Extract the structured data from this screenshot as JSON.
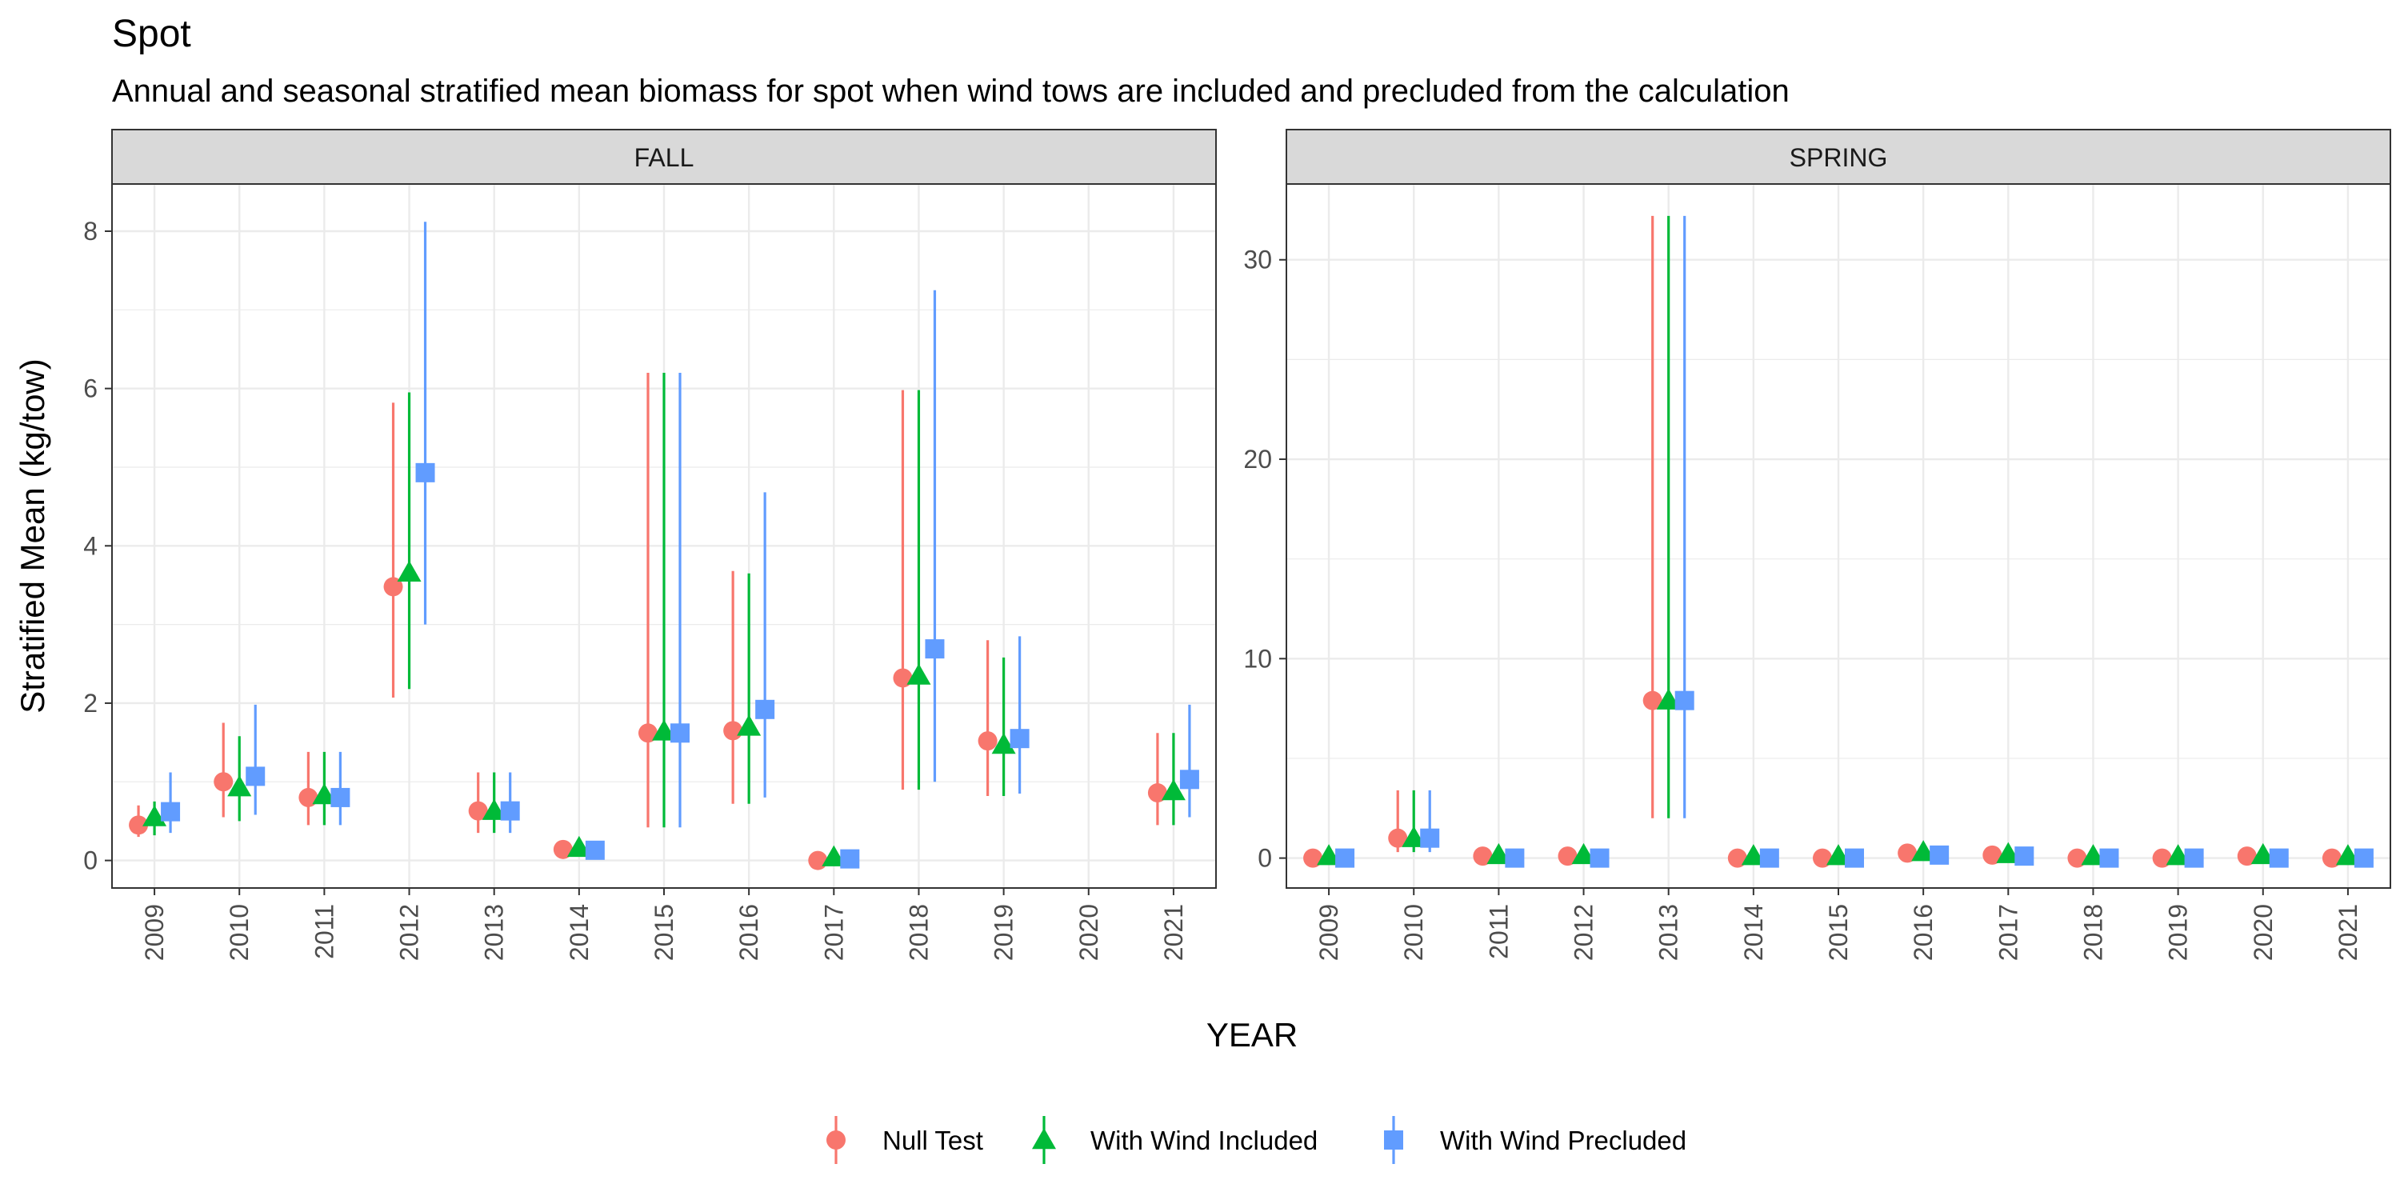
{
  "title": "Spot",
  "subtitle": "Annual and seasonal stratified mean biomass for spot when wind tows are included and precluded from the calculation",
  "colors": {
    "null_test": "#F8766D",
    "with_wind_included": "#00BA38",
    "with_wind_precluded": "#619CFF",
    "strip_bg": "#D9D9D9",
    "grid": "#EBEBEB",
    "panel_border": "#333333"
  },
  "chart_data": {
    "type": "scatter",
    "subtype": "pointrange-faceted",
    "xlabel": "YEAR",
    "ylabel": "Stratified Mean (kg/tow)",
    "legend_position": "bottom",
    "grid": true,
    "legend": [
      {
        "key": "null_test",
        "label": "Null Test",
        "shape": "circle"
      },
      {
        "key": "with_wind_included",
        "label": "With Wind Included",
        "shape": "triangle"
      },
      {
        "key": "with_wind_precluded",
        "label": "With Wind Precluded",
        "shape": "square"
      }
    ],
    "facets": [
      {
        "label": "FALL",
        "ylim": [
          -0.35,
          8.6
        ],
        "yticks": [
          0,
          2,
          4,
          6,
          8
        ],
        "years": [
          "2009",
          "2010",
          "2011",
          "2012",
          "2013",
          "2014",
          "2015",
          "2016",
          "2017",
          "2018",
          "2019",
          "2020",
          "2021"
        ],
        "series": [
          {
            "key": "null_test",
            "points": [
              {
                "year": "2009",
                "mean": 0.45,
                "low": 0.3,
                "high": 0.7
              },
              {
                "year": "2010",
                "mean": 1.0,
                "low": 0.55,
                "high": 1.75
              },
              {
                "year": "2011",
                "mean": 0.8,
                "low": 0.45,
                "high": 1.38
              },
              {
                "year": "2012",
                "mean": 3.48,
                "low": 2.07,
                "high": 5.82
              },
              {
                "year": "2013",
                "mean": 0.63,
                "low": 0.35,
                "high": 1.12
              },
              {
                "year": "2014",
                "mean": 0.14,
                "low": 0.05,
                "high": 0.25
              },
              {
                "year": "2015",
                "mean": 1.62,
                "low": 0.42,
                "high": 6.2
              },
              {
                "year": "2016",
                "mean": 1.65,
                "low": 0.72,
                "high": 3.68
              },
              {
                "year": "2017",
                "mean": 0.0,
                "low": 0.0,
                "high": 0.0
              },
              {
                "year": "2018",
                "mean": 2.32,
                "low": 0.9,
                "high": 5.98
              },
              {
                "year": "2019",
                "mean": 1.52,
                "low": 0.82,
                "high": 2.8
              },
              {
                "year": "2021",
                "mean": 0.86,
                "low": 0.45,
                "high": 1.62
              }
            ]
          },
          {
            "key": "with_wind_included",
            "points": [
              {
                "year": "2009",
                "mean": 0.55,
                "low": 0.32,
                "high": 0.75
              },
              {
                "year": "2010",
                "mean": 0.93,
                "low": 0.5,
                "high": 1.58
              },
              {
                "year": "2011",
                "mean": 0.83,
                "low": 0.45,
                "high": 1.38
              },
              {
                "year": "2012",
                "mean": 3.66,
                "low": 2.18,
                "high": 5.95
              },
              {
                "year": "2013",
                "mean": 0.63,
                "low": 0.35,
                "high": 1.12
              },
              {
                "year": "2014",
                "mean": 0.16,
                "low": 0.05,
                "high": 0.25
              },
              {
                "year": "2015",
                "mean": 1.64,
                "low": 0.42,
                "high": 6.2
              },
              {
                "year": "2016",
                "mean": 1.7,
                "low": 0.72,
                "high": 3.65
              },
              {
                "year": "2017",
                "mean": 0.04,
                "low": 0.0,
                "high": 0.08
              },
              {
                "year": "2018",
                "mean": 2.35,
                "low": 0.9,
                "high": 5.98
              },
              {
                "year": "2019",
                "mean": 1.47,
                "low": 0.82,
                "high": 2.58
              },
              {
                "year": "2021",
                "mean": 0.88,
                "low": 0.45,
                "high": 1.62
              }
            ]
          },
          {
            "key": "with_wind_precluded",
            "points": [
              {
                "year": "2009",
                "mean": 0.62,
                "low": 0.35,
                "high": 1.12
              },
              {
                "year": "2010",
                "mean": 1.07,
                "low": 0.58,
                "high": 1.98
              },
              {
                "year": "2011",
                "mean": 0.8,
                "low": 0.45,
                "high": 1.38
              },
              {
                "year": "2012",
                "mean": 4.93,
                "low": 3.0,
                "high": 8.12
              },
              {
                "year": "2013",
                "mean": 0.63,
                "low": 0.35,
                "high": 1.12
              },
              {
                "year": "2014",
                "mean": 0.13,
                "low": 0.05,
                "high": 0.25
              },
              {
                "year": "2015",
                "mean": 1.62,
                "low": 0.42,
                "high": 6.2
              },
              {
                "year": "2016",
                "mean": 1.92,
                "low": 0.8,
                "high": 4.68
              },
              {
                "year": "2017",
                "mean": 0.02,
                "low": 0.0,
                "high": 0.05
              },
              {
                "year": "2018",
                "mean": 2.69,
                "low": 1.0,
                "high": 7.25
              },
              {
                "year": "2019",
                "mean": 1.55,
                "low": 0.85,
                "high": 2.85
              },
              {
                "year": "2021",
                "mean": 1.03,
                "low": 0.55,
                "high": 1.98
              }
            ]
          }
        ]
      },
      {
        "label": "SPRING",
        "ylim": [
          -1.5,
          33.8
        ],
        "yticks": [
          0,
          10,
          20,
          30
        ],
        "years": [
          "2009",
          "2010",
          "2011",
          "2012",
          "2013",
          "2014",
          "2015",
          "2016",
          "2017",
          "2018",
          "2019",
          "2020",
          "2021"
        ],
        "series": [
          {
            "key": "null_test",
            "points": [
              {
                "year": "2009",
                "mean": 0.0,
                "low": 0.0,
                "high": 0.05
              },
              {
                "year": "2010",
                "mean": 1.0,
                "low": 0.3,
                "high": 3.4
              },
              {
                "year": "2011",
                "mean": 0.1,
                "low": 0.0,
                "high": 0.2
              },
              {
                "year": "2012",
                "mean": 0.1,
                "low": 0.0,
                "high": 0.2
              },
              {
                "year": "2013",
                "mean": 7.9,
                "low": 2.0,
                "high": 32.2
              },
              {
                "year": "2014",
                "mean": 0.0,
                "low": 0.0,
                "high": 0.05
              },
              {
                "year": "2015",
                "mean": 0.0,
                "low": 0.0,
                "high": 0.05
              },
              {
                "year": "2016",
                "mean": 0.25,
                "low": 0.05,
                "high": 0.5
              },
              {
                "year": "2017",
                "mean": 0.15,
                "low": 0.05,
                "high": 0.3
              },
              {
                "year": "2018",
                "mean": 0.0,
                "low": 0.0,
                "high": 0.05
              },
              {
                "year": "2019",
                "mean": 0.0,
                "low": 0.0,
                "high": 0.05
              },
              {
                "year": "2020",
                "mean": 0.1,
                "low": 0.0,
                "high": 0.2
              },
              {
                "year": "2021",
                "mean": 0.0,
                "low": 0.0,
                "high": 0.05
              }
            ]
          },
          {
            "key": "with_wind_included",
            "points": [
              {
                "year": "2009",
                "mean": 0.1,
                "low": 0.0,
                "high": 0.2
              },
              {
                "year": "2010",
                "mean": 1.0,
                "low": 0.3,
                "high": 3.4
              },
              {
                "year": "2011",
                "mean": 0.15,
                "low": 0.0,
                "high": 0.3
              },
              {
                "year": "2012",
                "mean": 0.15,
                "low": 0.0,
                "high": 0.3
              },
              {
                "year": "2013",
                "mean": 7.9,
                "low": 2.0,
                "high": 32.2
              },
              {
                "year": "2014",
                "mean": 0.1,
                "low": 0.0,
                "high": 0.2
              },
              {
                "year": "2015",
                "mean": 0.1,
                "low": 0.0,
                "high": 0.2
              },
              {
                "year": "2016",
                "mean": 0.3,
                "low": 0.05,
                "high": 0.5
              },
              {
                "year": "2017",
                "mean": 0.2,
                "low": 0.05,
                "high": 0.35
              },
              {
                "year": "2018",
                "mean": 0.1,
                "low": 0.0,
                "high": 0.2
              },
              {
                "year": "2019",
                "mean": 0.1,
                "low": 0.0,
                "high": 0.2
              },
              {
                "year": "2020",
                "mean": 0.15,
                "low": 0.0,
                "high": 0.3
              },
              {
                "year": "2021",
                "mean": 0.1,
                "low": 0.0,
                "high": 0.2
              }
            ]
          },
          {
            "key": "with_wind_precluded",
            "points": [
              {
                "year": "2009",
                "mean": 0.0,
                "low": 0.0,
                "high": 0.05
              },
              {
                "year": "2010",
                "mean": 1.0,
                "low": 0.3,
                "high": 3.4
              },
              {
                "year": "2011",
                "mean": 0.0,
                "low": 0.0,
                "high": 0.05
              },
              {
                "year": "2012",
                "mean": 0.0,
                "low": 0.0,
                "high": 0.05
              },
              {
                "year": "2013",
                "mean": 7.9,
                "low": 2.0,
                "high": 32.2
              },
              {
                "year": "2014",
                "mean": 0.0,
                "low": 0.0,
                "high": 0.05
              },
              {
                "year": "2015",
                "mean": 0.0,
                "low": 0.0,
                "high": 0.05
              },
              {
                "year": "2016",
                "mean": 0.15,
                "low": 0.05,
                "high": 0.3
              },
              {
                "year": "2017",
                "mean": 0.1,
                "low": 0.0,
                "high": 0.2
              },
              {
                "year": "2018",
                "mean": 0.0,
                "low": 0.0,
                "high": 0.05
              },
              {
                "year": "2019",
                "mean": 0.0,
                "low": 0.0,
                "high": 0.05
              },
              {
                "year": "2020",
                "mean": 0.0,
                "low": 0.0,
                "high": 0.05
              },
              {
                "year": "2021",
                "mean": 0.0,
                "low": 0.0,
                "high": 0.05
              }
            ]
          }
        ]
      }
    ]
  }
}
